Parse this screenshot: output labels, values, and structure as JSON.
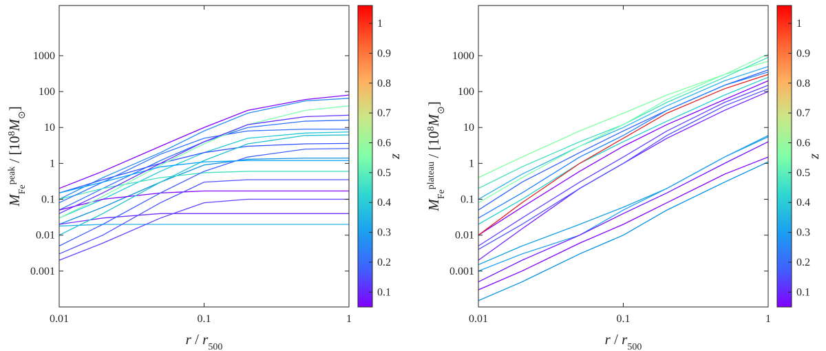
{
  "chart_data": [
    {
      "type": "line",
      "xlog": true,
      "ylog": true,
      "x": [
        0.01,
        0.02,
        0.05,
        0.1,
        0.2,
        0.5,
        1
      ],
      "xlim": [
        0.01,
        1
      ],
      "xticks": [
        0.01,
        0.1,
        1
      ],
      "ylim": [
        0.0001,
        25000
      ],
      "yticks": [
        0.001,
        0.01,
        0.1,
        1,
        10,
        100,
        1000
      ],
      "xlabel": [
        {
          "text": "r",
          "style": "italic"
        },
        {
          "text": " / "
        },
        {
          "text": "r",
          "style": "italic"
        },
        {
          "text": "500",
          "shift": "sub"
        }
      ],
      "ylabel": [
        {
          "text": "M",
          "style": "italic"
        },
        {
          "text": "Fe",
          "shift": "sub"
        },
        {
          "text": "peak",
          "shift": "super"
        },
        {
          "text": " / [10"
        },
        {
          "text": "8",
          "shift": "super"
        },
        {
          "text": "M",
          "style": "italic"
        },
        {
          "text": "⊙",
          "shift": "sub"
        },
        {
          "text": "]"
        }
      ],
      "colorbar": {
        "label": "z",
        "lim": [
          0.05,
          1.06
        ],
        "ticks": [
          0.1,
          0.2,
          0.3,
          0.4,
          0.5,
          0.6,
          0.7,
          0.8,
          0.9,
          1
        ],
        "colormap": [
          "#8000ff",
          "#4060ff",
          "#1aa0f0",
          "#30d8d0",
          "#80ffa8",
          "#c8e888",
          "#ffb060",
          "#ff6030",
          "#ff0000"
        ]
      },
      "series": [
        {
          "color": "#8000ff",
          "values": [
            0.2,
            0.6,
            3,
            10,
            30,
            60,
            80
          ]
        },
        {
          "color": "#2a8cf0",
          "values": [
            0.1,
            0.4,
            2,
            8,
            25,
            55,
            65
          ]
        },
        {
          "color": "#3070ff",
          "values": [
            0.05,
            0.2,
            1.2,
            4,
            10,
            15,
            16
          ]
        },
        {
          "color": "#20c8d8",
          "values": [
            0.03,
            0.1,
            0.6,
            2,
            5,
            7,
            7.5
          ]
        },
        {
          "color": "#3050ff",
          "values": [
            0.15,
            0.35,
            1,
            2,
            3,
            3.5,
            3.6
          ]
        },
        {
          "color": "#1090e0",
          "values": [
            0.02,
            0.06,
            0.3,
            0.9,
            1.3,
            1.4,
            1.4
          ]
        },
        {
          "color": "#40e0c0",
          "values": [
            0.1,
            0.2,
            0.4,
            0.55,
            0.6,
            0.6,
            0.6
          ]
        },
        {
          "color": "#8000ff",
          "values": [
            0.05,
            0.1,
            0.15,
            0.17,
            0.17,
            0.17,
            0.17
          ]
        },
        {
          "color": "#7030ff",
          "values": [
            0.02,
            0.03,
            0.04,
            0.04,
            0.04,
            0.04,
            0.04
          ]
        },
        {
          "color": "#20b0e0",
          "values": [
            0.018,
            0.02,
            0.02,
            0.02,
            0.02,
            0.02,
            0.02
          ]
        },
        {
          "color": "#6040ff",
          "values": [
            0.002,
            0.006,
            0.03,
            0.08,
            0.1,
            0.1,
            0.1
          ]
        },
        {
          "color": "#4060ff",
          "values": [
            0.005,
            0.02,
            0.15,
            0.6,
            1.5,
            2.5,
            2.6
          ]
        },
        {
          "color": "#20c0d0",
          "values": [
            0.01,
            0.04,
            0.3,
            1.2,
            3.5,
            6,
            6.2
          ]
        },
        {
          "color": "#3070ff",
          "values": [
            0.08,
            0.3,
            1.8,
            5,
            8,
            9,
            9
          ]
        },
        {
          "color": "#80ffb0",
          "values": [
            0.03,
            0.12,
            0.9,
            3.5,
            12,
            30,
            40
          ]
        },
        {
          "color": "#5050ff",
          "values": [
            0.003,
            0.01,
            0.08,
            0.3,
            0.35,
            0.35,
            0.35
          ]
        },
        {
          "color": "#00a0ff",
          "values": [
            0.15,
            0.3,
            0.8,
            1.1,
            1.2,
            1.2,
            1.2
          ]
        },
        {
          "color": "#6030ff",
          "values": [
            0.04,
            0.15,
            1,
            4,
            12,
            20,
            22
          ]
        }
      ]
    },
    {
      "type": "line",
      "xlog": true,
      "ylog": true,
      "x": [
        0.01,
        0.02,
        0.05,
        0.1,
        0.2,
        0.5,
        1
      ],
      "xlim": [
        0.01,
        1
      ],
      "xticks": [
        0.01,
        0.1,
        1
      ],
      "ylim": [
        0.0001,
        25000
      ],
      "yticks": [
        0.001,
        0.01,
        0.1,
        1,
        10,
        100,
        1000
      ],
      "xlabel": [
        {
          "text": "r",
          "style": "italic"
        },
        {
          "text": " / "
        },
        {
          "text": "r",
          "style": "italic"
        },
        {
          "text": "500",
          "shift": "sub"
        }
      ],
      "ylabel": [
        {
          "text": "M",
          "style": "italic"
        },
        {
          "text": "Fe",
          "shift": "sub"
        },
        {
          "text": "plateau",
          "shift": "super"
        },
        {
          "text": " / [10"
        },
        {
          "text": "8",
          "shift": "super"
        },
        {
          "text": "M",
          "style": "italic"
        },
        {
          "text": "⊙",
          "shift": "sub"
        },
        {
          "text": "]"
        }
      ],
      "colorbar": {
        "label": "z",
        "lim": [
          0.05,
          1.06
        ],
        "ticks": [
          0.1,
          0.2,
          0.3,
          0.4,
          0.5,
          0.6,
          0.7,
          0.8,
          0.9,
          1
        ],
        "colormap": [
          "#8000ff",
          "#4060ff",
          "#1aa0f0",
          "#30d8d0",
          "#80ffa8",
          "#c8e888",
          "#ffb060",
          "#ff6030",
          "#ff0000"
        ]
      },
      "series": [
        {
          "color": "#80ffa0",
          "values": [
            0.4,
            1.5,
            8,
            25,
            80,
            300,
            700
          ]
        },
        {
          "color": "#30b0f0",
          "values": [
            0.1,
            0.5,
            3,
            10,
            40,
            200,
            500
          ]
        },
        {
          "color": "#3060ff",
          "values": [
            0.05,
            0.3,
            2,
            8,
            30,
            150,
            400
          ]
        },
        {
          "color": "#20d0d0",
          "values": [
            0.02,
            0.1,
            1,
            4,
            15,
            80,
            250
          ]
        },
        {
          "color": "#8000ff",
          "values": [
            0.01,
            0.06,
            0.6,
            3,
            12,
            60,
            200
          ]
        },
        {
          "color": "#6040ff",
          "values": [
            0.005,
            0.03,
            0.3,
            1.5,
            8,
            50,
            150
          ]
        },
        {
          "color": "#7020ff",
          "values": [
            0.002,
            0.015,
            0.2,
            1,
            5,
            30,
            100
          ]
        },
        {
          "color": "#40e0c0",
          "values": [
            0.2,
            0.8,
            4,
            12,
            50,
            250,
            900
          ]
        },
        {
          "color": "#80ffb0",
          "values": [
            0.08,
            0.4,
            3,
            12,
            60,
            300,
            1100
          ]
        },
        {
          "color": "#10a0e0",
          "values": [
            0.0015,
            0.005,
            0.02,
            0.06,
            0.2,
            1.5,
            5.5
          ]
        },
        {
          "color": "#0090e0",
          "values": [
            0.00015,
            0.0005,
            0.003,
            0.01,
            0.05,
            0.3,
            1.1
          ]
        },
        {
          "color": "#8000ff",
          "values": [
            0.0003,
            0.001,
            0.006,
            0.02,
            0.08,
            0.5,
            1.5
          ]
        },
        {
          "color": "#20a0f0",
          "values": [
            0.001,
            0.003,
            0.01,
            0.05,
            0.2,
            1.5,
            6
          ]
        },
        {
          "color": "#7010ff",
          "values": [
            0.0005,
            0.002,
            0.01,
            0.04,
            0.15,
            1,
            4
          ]
        },
        {
          "color": "#2080ff",
          "values": [
            0.03,
            0.15,
            1.5,
            6,
            30,
            150,
            350
          ]
        },
        {
          "color": "#e02020",
          "values": [
            0.01,
            0.08,
            1,
            5,
            25,
            120,
            300
          ]
        },
        {
          "color": "#5050ff",
          "values": [
            0.004,
            0.02,
            0.2,
            1,
            6,
            40,
            120
          ]
        }
      ]
    }
  ]
}
